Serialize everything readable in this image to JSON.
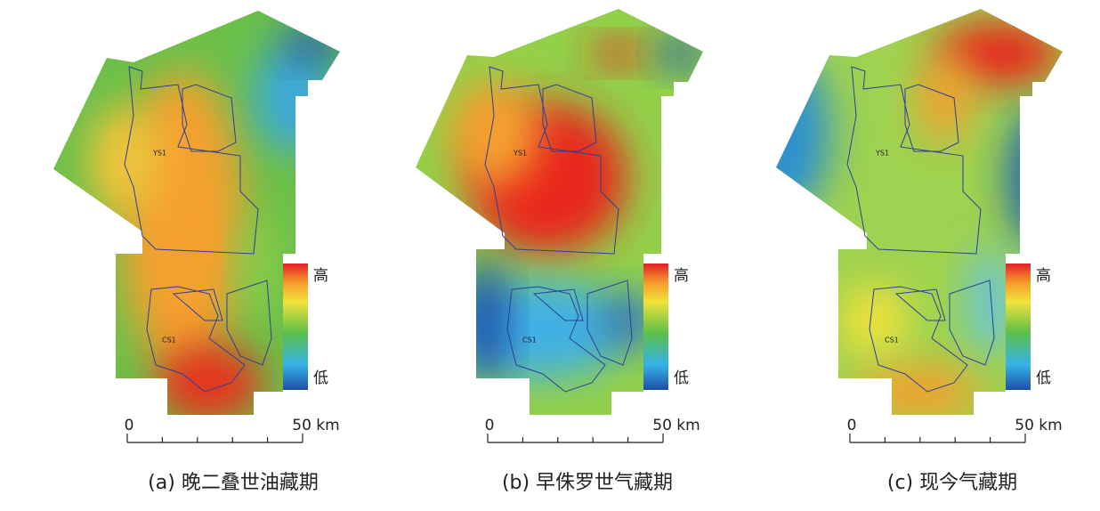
{
  "panels": [
    {
      "caption": "(a) 晚二叠世油藏期",
      "legend": {
        "high": "高",
        "low": "低"
      },
      "scale": {
        "start": "0",
        "end": "50 km"
      },
      "wells": [
        "YS1",
        "CS1"
      ]
    },
    {
      "caption": "(b) 早侏罗世气藏期",
      "legend": {
        "high": "高",
        "low": "低"
      },
      "scale": {
        "start": "0",
        "end": "50 km"
      },
      "wells": [
        "YS1",
        "CS1"
      ]
    },
    {
      "caption": "(c) 现今气藏期",
      "legend": {
        "high": "高",
        "low": "低"
      },
      "scale": {
        "start": "0",
        "end": "50 km"
      },
      "wells": [
        "YS1",
        "CS1"
      ]
    }
  ]
}
